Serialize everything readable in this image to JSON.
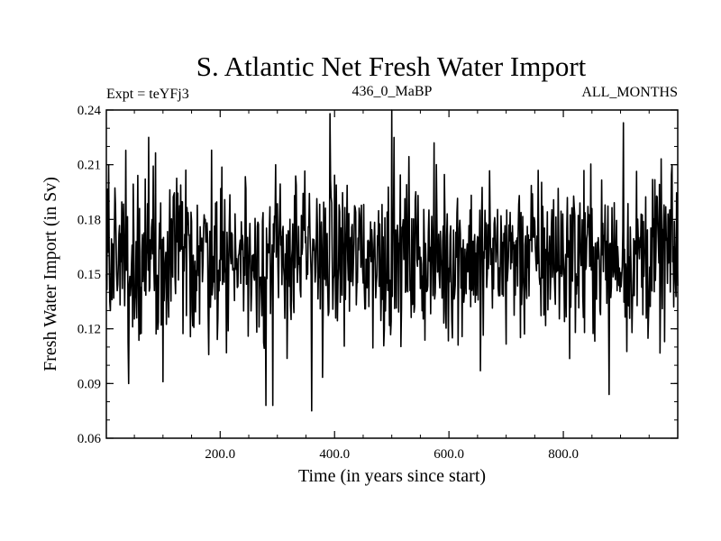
{
  "chart_data": {
    "type": "line",
    "title": "S. Atlantic Net Fresh Water Import",
    "experiment": "Expt = teYFj3",
    "period": "436_0_MaBP",
    "months": "ALL_MONTHS",
    "xlabel": "Time (in years since start)",
    "ylabel": "Fresh Water Import (in Sv)",
    "xlim": [
      1,
      1000
    ],
    "ylim": [
      0.06,
      0.24
    ],
    "xticks": [
      200,
      400,
      600,
      800
    ],
    "xtick_labels": [
      "200.0",
      "400.0",
      "600.0",
      "800.0"
    ],
    "yticks": [
      0.06,
      0.09,
      0.12,
      0.15,
      0.18,
      0.21,
      0.24
    ],
    "ytick_labels": [
      "0.06",
      "0.09",
      "0.12",
      "0.15",
      "0.18",
      "0.21",
      "0.24"
    ],
    "series": [
      {
        "name": "fresh_water_import",
        "n_points": 1000,
        "mean": 0.16,
        "std_dev": 0.022,
        "min": 0.075,
        "max": 0.24,
        "extremes": [
          {
            "x": 5,
            "y": 0.21
          },
          {
            "x": 8,
            "y": 0.13
          },
          {
            "x": 40,
            "y": 0.09
          },
          {
            "x": 75,
            "y": 0.225
          },
          {
            "x": 100,
            "y": 0.091
          },
          {
            "x": 185,
            "y": 0.218
          },
          {
            "x": 280,
            "y": 0.078
          },
          {
            "x": 292,
            "y": 0.078
          },
          {
            "x": 360,
            "y": 0.075
          },
          {
            "x": 392,
            "y": 0.238
          },
          {
            "x": 500,
            "y": 0.24
          },
          {
            "x": 655,
            "y": 0.097
          },
          {
            "x": 880,
            "y": 0.084
          },
          {
            "x": 905,
            "y": 0.233
          },
          {
            "x": 990,
            "y": 0.21
          }
        ]
      }
    ]
  }
}
